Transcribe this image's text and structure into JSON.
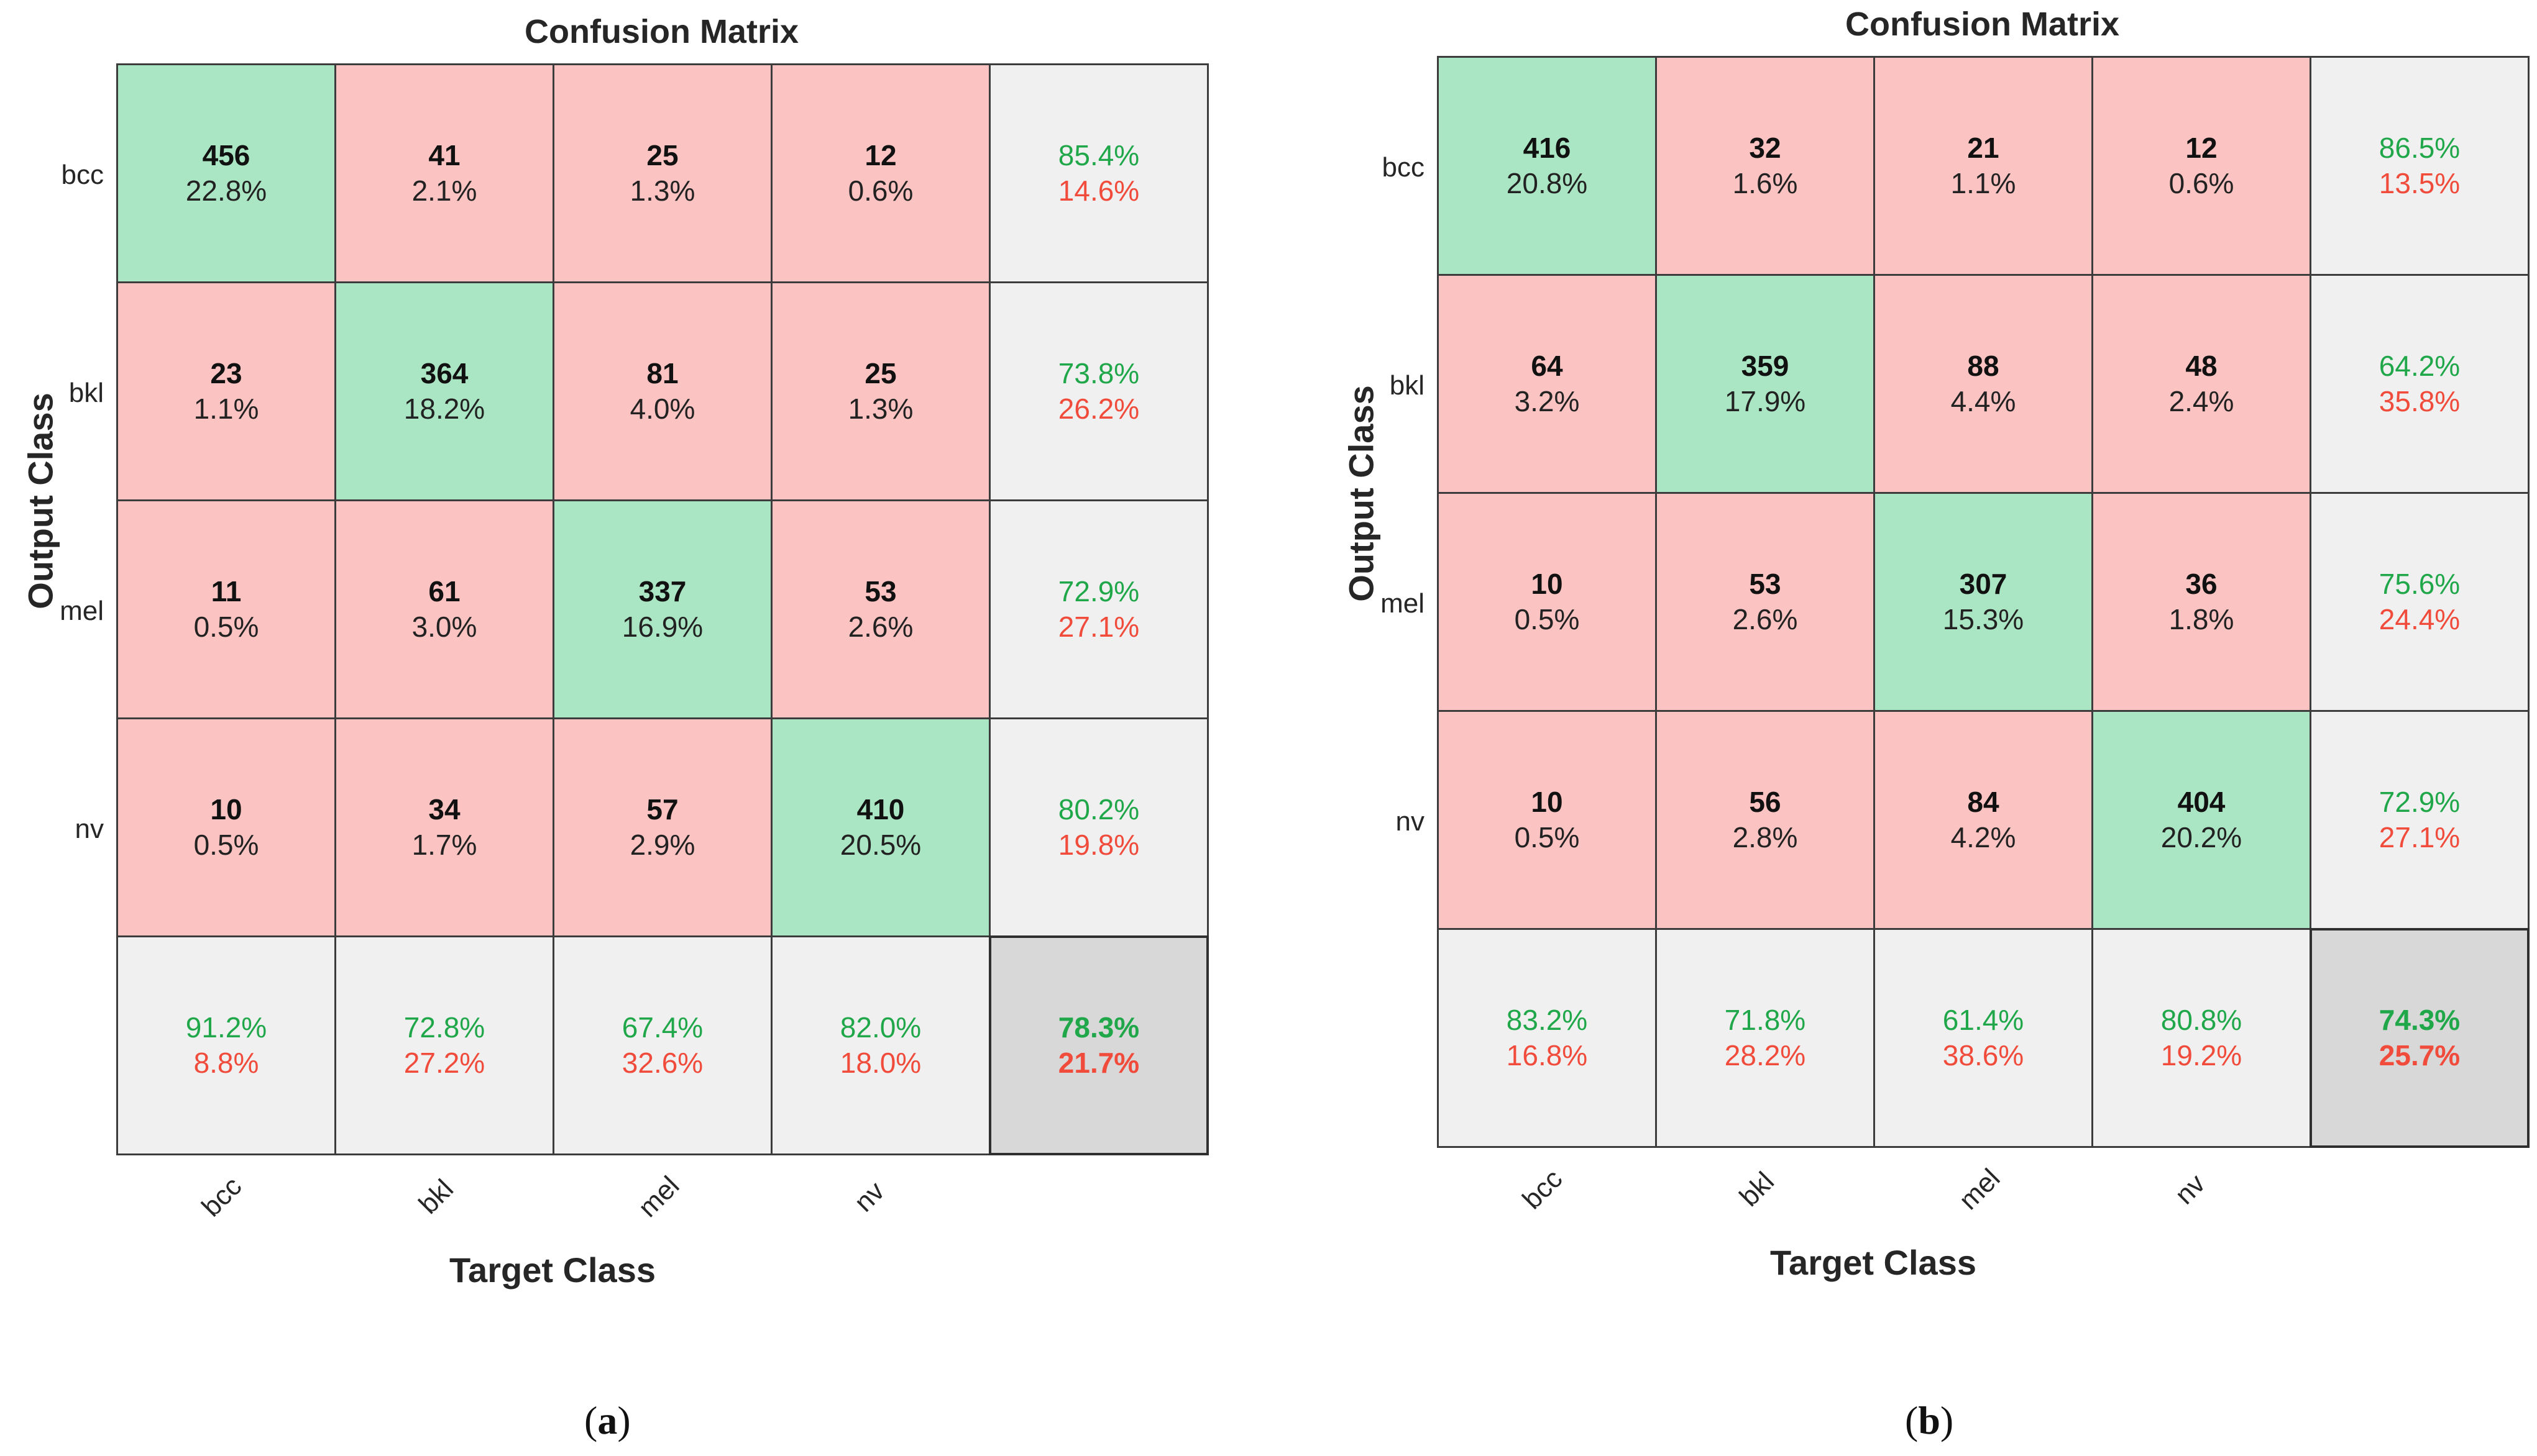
{
  "chart_data": [
    {
      "type": "heatmap",
      "subtype": "confusion_matrix",
      "title": "Confusion Matrix",
      "xlabel": "Target Class",
      "ylabel": "Output Class",
      "classes": [
        "bcc",
        "bkl",
        "mel",
        "nv"
      ],
      "cells": [
        [
          {
            "count": "456",
            "pct": "22.8%"
          },
          {
            "count": "41",
            "pct": "2.1%"
          },
          {
            "count": "25",
            "pct": "1.3%"
          },
          {
            "count": "12",
            "pct": "0.6%"
          }
        ],
        [
          {
            "count": "23",
            "pct": "1.1%"
          },
          {
            "count": "364",
            "pct": "18.2%"
          },
          {
            "count": "81",
            "pct": "4.0%"
          },
          {
            "count": "25",
            "pct": "1.3%"
          }
        ],
        [
          {
            "count": "11",
            "pct": "0.5%"
          },
          {
            "count": "61",
            "pct": "3.0%"
          },
          {
            "count": "337",
            "pct": "16.9%"
          },
          {
            "count": "53",
            "pct": "2.6%"
          }
        ],
        [
          {
            "count": "10",
            "pct": "0.5%"
          },
          {
            "count": "34",
            "pct": "1.7%"
          },
          {
            "count": "57",
            "pct": "2.9%"
          },
          {
            "count": "410",
            "pct": "20.5%"
          }
        ]
      ],
      "row_summary": [
        {
          "good": "85.4%",
          "bad": "14.6%"
        },
        {
          "good": "73.8%",
          "bad": "26.2%"
        },
        {
          "good": "72.9%",
          "bad": "27.1%"
        },
        {
          "good": "80.2%",
          "bad": "19.8%"
        }
      ],
      "col_summary": [
        {
          "good": "91.2%",
          "bad": "8.8%"
        },
        {
          "good": "72.8%",
          "bad": "27.2%"
        },
        {
          "good": "67.4%",
          "bad": "32.6%"
        },
        {
          "good": "82.0%",
          "bad": "18.0%"
        }
      ],
      "overall": {
        "good": "78.3%",
        "bad": "21.7%"
      },
      "caption_letter": "a"
    },
    {
      "type": "heatmap",
      "subtype": "confusion_matrix",
      "title": "Confusion Matrix",
      "xlabel": "Target Class",
      "ylabel": "Output Class",
      "classes": [
        "bcc",
        "bkl",
        "mel",
        "nv"
      ],
      "cells": [
        [
          {
            "count": "416",
            "pct": "20.8%"
          },
          {
            "count": "32",
            "pct": "1.6%"
          },
          {
            "count": "21",
            "pct": "1.1%"
          },
          {
            "count": "12",
            "pct": "0.6%"
          }
        ],
        [
          {
            "count": "64",
            "pct": "3.2%"
          },
          {
            "count": "359",
            "pct": "17.9%"
          },
          {
            "count": "88",
            "pct": "4.4%"
          },
          {
            "count": "48",
            "pct": "2.4%"
          }
        ],
        [
          {
            "count": "10",
            "pct": "0.5%"
          },
          {
            "count": "53",
            "pct": "2.6%"
          },
          {
            "count": "307",
            "pct": "15.3%"
          },
          {
            "count": "36",
            "pct": "1.8%"
          }
        ],
        [
          {
            "count": "10",
            "pct": "0.5%"
          },
          {
            "count": "56",
            "pct": "2.8%"
          },
          {
            "count": "84",
            "pct": "4.2%"
          },
          {
            "count": "404",
            "pct": "20.2%"
          }
        ]
      ],
      "row_summary": [
        {
          "good": "86.5%",
          "bad": "13.5%"
        },
        {
          "good": "64.2%",
          "bad": "35.8%"
        },
        {
          "good": "75.6%",
          "bad": "24.4%"
        },
        {
          "good": "72.9%",
          "bad": "27.1%"
        }
      ],
      "col_summary": [
        {
          "good": "83.2%",
          "bad": "16.8%"
        },
        {
          "good": "71.8%",
          "bad": "28.2%"
        },
        {
          "good": "61.4%",
          "bad": "38.6%"
        },
        {
          "good": "80.8%",
          "bad": "19.2%"
        }
      ],
      "overall": {
        "good": "74.3%",
        "bad": "25.7%"
      },
      "caption_letter": "b"
    }
  ]
}
